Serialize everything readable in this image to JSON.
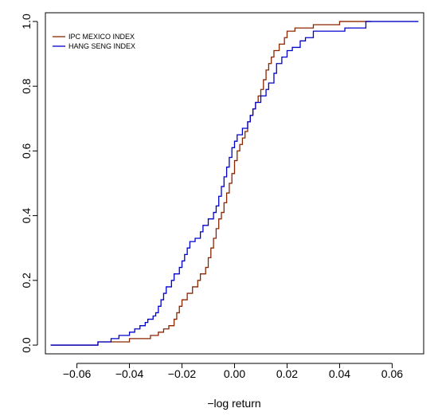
{
  "chart_data": {
    "type": "line",
    "title": "",
    "xlabel": "−log return",
    "ylabel": "",
    "xlim": [
      -0.072,
      0.072
    ],
    "ylim": [
      -0.027,
      1.027
    ],
    "x_ticks": [
      -0.06,
      -0.04,
      -0.02,
      0.0,
      0.02,
      0.04,
      0.06
    ],
    "x_tick_labels": [
      "−0.06",
      "−0.04",
      "−0.02",
      "0.00",
      "0.02",
      "0.04",
      "0.06"
    ],
    "y_ticks": [
      0.0,
      0.2,
      0.4,
      0.6,
      0.8,
      1.0
    ],
    "y_tick_labels": [
      "0.0",
      "0.2",
      "0.4",
      "0.6",
      "0.8",
      "1.0"
    ],
    "grid": false,
    "legend_position": "top-left",
    "series": [
      {
        "name": "IPC MEXICO INDEX",
        "color": "#8b2500",
        "step": true,
        "points": [
          [
            -0.07,
            0.0
          ],
          [
            -0.052,
            0.0
          ],
          [
            -0.052,
            0.01
          ],
          [
            -0.04,
            0.01
          ],
          [
            -0.04,
            0.02
          ],
          [
            -0.032,
            0.02
          ],
          [
            -0.032,
            0.03
          ],
          [
            -0.029,
            0.03
          ],
          [
            -0.029,
            0.04
          ],
          [
            -0.027,
            0.04
          ],
          [
            -0.027,
            0.05
          ],
          [
            -0.025,
            0.05
          ],
          [
            -0.025,
            0.06
          ],
          [
            -0.023,
            0.06
          ],
          [
            -0.023,
            0.08
          ],
          [
            -0.022,
            0.08
          ],
          [
            -0.022,
            0.1
          ],
          [
            -0.021,
            0.1
          ],
          [
            -0.021,
            0.12
          ],
          [
            -0.02,
            0.12
          ],
          [
            -0.02,
            0.14
          ],
          [
            -0.018,
            0.14
          ],
          [
            -0.018,
            0.16
          ],
          [
            -0.016,
            0.16
          ],
          [
            -0.016,
            0.18
          ],
          [
            -0.014,
            0.18
          ],
          [
            -0.014,
            0.2
          ],
          [
            -0.013,
            0.2
          ],
          [
            -0.013,
            0.22
          ],
          [
            -0.011,
            0.22
          ],
          [
            -0.011,
            0.24
          ],
          [
            -0.01,
            0.24
          ],
          [
            -0.01,
            0.27
          ],
          [
            -0.009,
            0.27
          ],
          [
            -0.009,
            0.3
          ],
          [
            -0.008,
            0.3
          ],
          [
            -0.008,
            0.33
          ],
          [
            -0.007,
            0.33
          ],
          [
            -0.007,
            0.36
          ],
          [
            -0.006,
            0.36
          ],
          [
            -0.006,
            0.39
          ],
          [
            -0.005,
            0.39
          ],
          [
            -0.005,
            0.41
          ],
          [
            -0.004,
            0.41
          ],
          [
            -0.004,
            0.44
          ],
          [
            -0.003,
            0.44
          ],
          [
            -0.003,
            0.47
          ],
          [
            -0.002,
            0.47
          ],
          [
            -0.002,
            0.5
          ],
          [
            -0.001,
            0.5
          ],
          [
            -0.001,
            0.53
          ],
          [
            0.0,
            0.53
          ],
          [
            0.0,
            0.57
          ],
          [
            0.001,
            0.57
          ],
          [
            0.001,
            0.6
          ],
          [
            0.002,
            0.6
          ],
          [
            0.002,
            0.62
          ],
          [
            0.003,
            0.62
          ],
          [
            0.003,
            0.64
          ],
          [
            0.004,
            0.64
          ],
          [
            0.004,
            0.66
          ],
          [
            0.005,
            0.66
          ],
          [
            0.005,
            0.69
          ],
          [
            0.006,
            0.69
          ],
          [
            0.006,
            0.71
          ],
          [
            0.007,
            0.71
          ],
          [
            0.007,
            0.73
          ],
          [
            0.008,
            0.73
          ],
          [
            0.008,
            0.75
          ],
          [
            0.009,
            0.75
          ],
          [
            0.009,
            0.77
          ],
          [
            0.01,
            0.77
          ],
          [
            0.01,
            0.79
          ],
          [
            0.011,
            0.79
          ],
          [
            0.011,
            0.82
          ],
          [
            0.012,
            0.82
          ],
          [
            0.012,
            0.85
          ],
          [
            0.013,
            0.85
          ],
          [
            0.013,
            0.87
          ],
          [
            0.014,
            0.87
          ],
          [
            0.014,
            0.89
          ],
          [
            0.015,
            0.89
          ],
          [
            0.015,
            0.91
          ],
          [
            0.017,
            0.91
          ],
          [
            0.017,
            0.93
          ],
          [
            0.019,
            0.93
          ],
          [
            0.019,
            0.95
          ],
          [
            0.02,
            0.95
          ],
          [
            0.02,
            0.97
          ],
          [
            0.023,
            0.97
          ],
          [
            0.023,
            0.98
          ],
          [
            0.03,
            0.98
          ],
          [
            0.03,
            0.99
          ],
          [
            0.04,
            0.99
          ],
          [
            0.04,
            1.0
          ],
          [
            0.052,
            1.0
          ]
        ]
      },
      {
        "name": "HANG SENG INDEX",
        "color": "#0000cc",
        "step": true,
        "points": [
          [
            -0.07,
            0.0
          ],
          [
            -0.052,
            0.0
          ],
          [
            -0.052,
            0.01
          ],
          [
            -0.047,
            0.01
          ],
          [
            -0.047,
            0.02
          ],
          [
            -0.044,
            0.02
          ],
          [
            -0.044,
            0.03
          ],
          [
            -0.04,
            0.03
          ],
          [
            -0.04,
            0.04
          ],
          [
            -0.038,
            0.04
          ],
          [
            -0.038,
            0.05
          ],
          [
            -0.036,
            0.05
          ],
          [
            -0.036,
            0.06
          ],
          [
            -0.034,
            0.06
          ],
          [
            -0.034,
            0.07
          ],
          [
            -0.033,
            0.07
          ],
          [
            -0.033,
            0.08
          ],
          [
            -0.031,
            0.08
          ],
          [
            -0.031,
            0.09
          ],
          [
            -0.03,
            0.09
          ],
          [
            -0.03,
            0.1
          ],
          [
            -0.029,
            0.1
          ],
          [
            -0.029,
            0.12
          ],
          [
            -0.028,
            0.12
          ],
          [
            -0.028,
            0.14
          ],
          [
            -0.027,
            0.14
          ],
          [
            -0.027,
            0.16
          ],
          [
            -0.026,
            0.16
          ],
          [
            -0.026,
            0.18
          ],
          [
            -0.024,
            0.18
          ],
          [
            -0.024,
            0.2
          ],
          [
            -0.023,
            0.2
          ],
          [
            -0.023,
            0.22
          ],
          [
            -0.021,
            0.22
          ],
          [
            -0.021,
            0.24
          ],
          [
            -0.02,
            0.24
          ],
          [
            -0.02,
            0.26
          ],
          [
            -0.019,
            0.26
          ],
          [
            -0.019,
            0.28
          ],
          [
            -0.018,
            0.28
          ],
          [
            -0.018,
            0.3
          ],
          [
            -0.017,
            0.3
          ],
          [
            -0.017,
            0.32
          ],
          [
            -0.015,
            0.32
          ],
          [
            -0.015,
            0.33
          ],
          [
            -0.013,
            0.33
          ],
          [
            -0.013,
            0.35
          ],
          [
            -0.012,
            0.35
          ],
          [
            -0.012,
            0.37
          ],
          [
            -0.01,
            0.37
          ],
          [
            -0.01,
            0.39
          ],
          [
            -0.008,
            0.39
          ],
          [
            -0.008,
            0.41
          ],
          [
            -0.007,
            0.41
          ],
          [
            -0.007,
            0.43
          ],
          [
            -0.006,
            0.43
          ],
          [
            -0.006,
            0.46
          ],
          [
            -0.005,
            0.46
          ],
          [
            -0.005,
            0.49
          ],
          [
            -0.004,
            0.49
          ],
          [
            -0.004,
            0.52
          ],
          [
            -0.003,
            0.52
          ],
          [
            -0.003,
            0.55
          ],
          [
            -0.002,
            0.55
          ],
          [
            -0.002,
            0.58
          ],
          [
            -0.001,
            0.58
          ],
          [
            -0.001,
            0.61
          ],
          [
            0.0,
            0.61
          ],
          [
            0.0,
            0.63
          ],
          [
            0.001,
            0.63
          ],
          [
            0.001,
            0.65
          ],
          [
            0.003,
            0.65
          ],
          [
            0.003,
            0.67
          ],
          [
            0.005,
            0.67
          ],
          [
            0.005,
            0.69
          ],
          [
            0.006,
            0.69
          ],
          [
            0.006,
            0.71
          ],
          [
            0.007,
            0.71
          ],
          [
            0.007,
            0.73
          ],
          [
            0.008,
            0.73
          ],
          [
            0.008,
            0.75
          ],
          [
            0.01,
            0.75
          ],
          [
            0.01,
            0.77
          ],
          [
            0.012,
            0.77
          ],
          [
            0.012,
            0.79
          ],
          [
            0.013,
            0.79
          ],
          [
            0.013,
            0.81
          ],
          [
            0.015,
            0.81
          ],
          [
            0.015,
            0.84
          ],
          [
            0.016,
            0.84
          ],
          [
            0.016,
            0.87
          ],
          [
            0.018,
            0.87
          ],
          [
            0.018,
            0.89
          ],
          [
            0.02,
            0.89
          ],
          [
            0.02,
            0.91
          ],
          [
            0.022,
            0.91
          ],
          [
            0.022,
            0.92
          ],
          [
            0.025,
            0.92
          ],
          [
            0.025,
            0.94
          ],
          [
            0.027,
            0.94
          ],
          [
            0.027,
            0.95
          ],
          [
            0.03,
            0.95
          ],
          [
            0.03,
            0.97
          ],
          [
            0.042,
            0.97
          ],
          [
            0.042,
            0.98
          ],
          [
            0.05,
            0.98
          ],
          [
            0.05,
            1.0
          ],
          [
            0.07,
            1.0
          ]
        ]
      }
    ]
  }
}
